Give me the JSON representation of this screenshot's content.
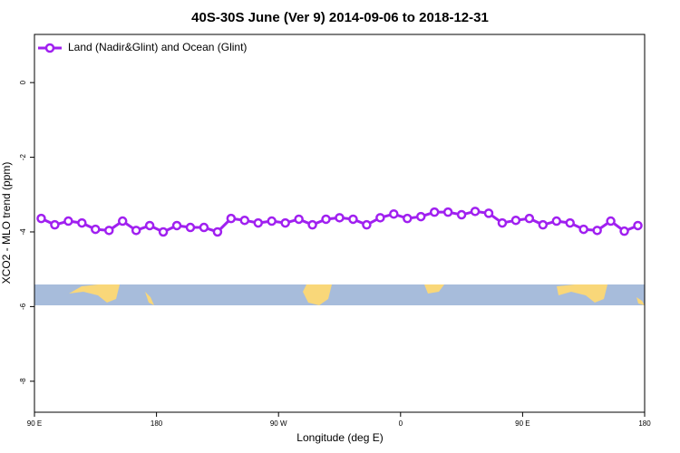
{
  "chart_data": {
    "type": "line",
    "title": "40S-30S June (Ver 9)   2014-09-06 to 2018-12-31",
    "x_label": "Longitude (deg E)",
    "y_label": "XCO2 - MLO trend (ppm)",
    "xlim": [
      90,
      540
    ],
    "xticks": [
      {
        "value": 90,
        "label": "90 E"
      },
      180,
      {
        "value": 270,
        "label": "90 W"
      },
      {
        "value": 360,
        "label": "0"
      },
      {
        "value": 450,
        "label": "90 E"
      },
      {
        "value": 540,
        "label": "180"
      }
    ],
    "ylim": [
      -8.83,
      1.29
    ],
    "yticks": [
      0,
      -2,
      -4,
      -6,
      -8
    ],
    "legend": "top-left",
    "x": [
      95,
      105,
      115,
      125,
      135,
      145,
      155,
      165,
      175,
      185,
      195,
      205,
      215,
      225,
      235,
      245,
      255,
      265,
      275,
      285,
      295,
      305,
      315,
      325,
      335,
      345,
      355,
      365,
      375,
      385,
      395,
      405,
      415,
      425,
      435,
      445,
      455,
      465,
      475,
      485,
      495,
      505,
      515,
      525,
      535
    ],
    "series": [
      {
        "name": "Land (Nadir&Glint) and Ocean (Glint)",
        "color": "#a020f0",
        "values": [
          -3.64,
          -3.81,
          -3.71,
          -3.76,
          -3.93,
          -3.96,
          -3.71,
          -3.96,
          -3.83,
          -4.0,
          -3.83,
          -3.88,
          -3.88,
          -4.0,
          -3.64,
          -3.69,
          -3.76,
          -3.71,
          -3.76,
          -3.66,
          -3.81,
          -3.66,
          -3.62,
          -3.66,
          -3.81,
          -3.62,
          -3.52,
          -3.64,
          -3.59,
          -3.47,
          -3.47,
          -3.54,
          -3.45,
          -3.5,
          -3.76,
          -3.69,
          -3.64,
          -3.81,
          -3.71,
          -3.76,
          -3.93,
          -3.96,
          -3.71,
          -3.98,
          -3.83
        ]
      }
    ]
  }
}
